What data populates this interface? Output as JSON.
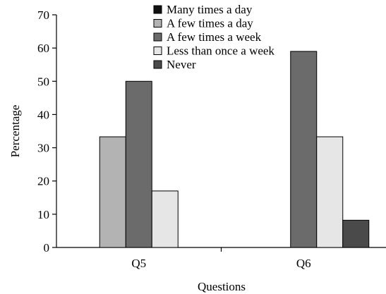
{
  "chart_data": {
    "type": "bar",
    "title": "",
    "xlabel": "Questions",
    "ylabel": "Percentage",
    "ylim": [
      0,
      70
    ],
    "yticks": [
      0,
      10,
      20,
      30,
      40,
      50,
      60,
      70
    ],
    "categories": [
      "Q5",
      "Q6"
    ],
    "grid": false,
    "legend_position": "top-right",
    "series": [
      {
        "name": "Many times a day",
        "color": "#111111",
        "values": [
          0,
          0
        ]
      },
      {
        "name": "A few times a day",
        "color": "#b3b3b3",
        "values": [
          33.3,
          0
        ]
      },
      {
        "name": "A few times a week",
        "color": "#6b6b6b",
        "values": [
          50,
          59
        ]
      },
      {
        "name": "Less than once a week",
        "color": "#e6e6e6",
        "values": [
          17,
          33.3
        ]
      },
      {
        "name": "Never",
        "color": "#4a4a4a",
        "values": [
          0,
          8.2
        ]
      }
    ]
  }
}
